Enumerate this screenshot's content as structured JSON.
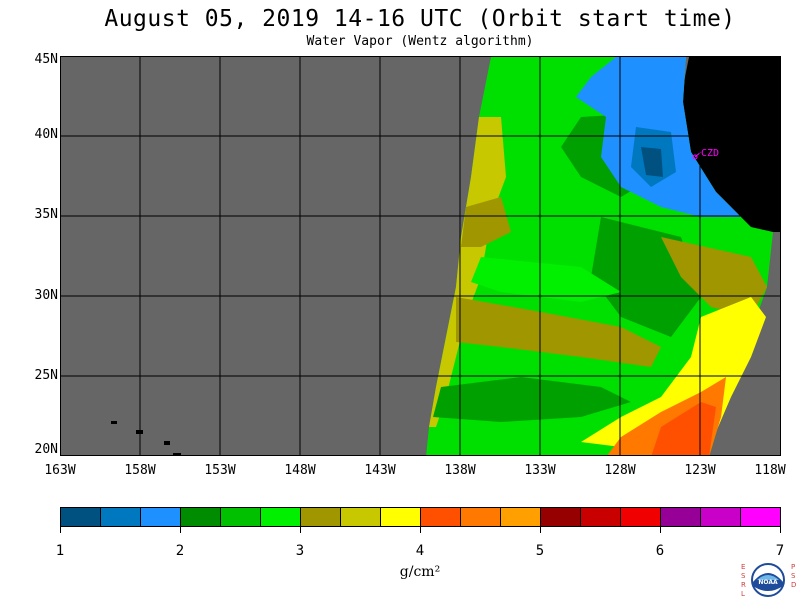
{
  "title": "August 05, 2019  14-16 UTC  (Orbit start time)",
  "subtitle": "Water Vapor (Wentz algorithm)",
  "map": {
    "lat_labels": [
      "45N",
      "40N",
      "35N",
      "30N",
      "25N",
      "20N"
    ],
    "lon_labels": [
      "163W",
      "158W",
      "153W",
      "148W",
      "143W",
      "138W",
      "133W",
      "128W",
      "123W",
      "118W"
    ],
    "station_label": "CZD",
    "background_color": "#666666",
    "land_color": "#000000"
  },
  "colorbar": {
    "labels": [
      "1",
      "2",
      "3",
      "4",
      "5",
      "6",
      "7"
    ],
    "units": "g/cm²",
    "colors": [
      "#005080",
      "#0078c0",
      "#1e90ff",
      "#008c00",
      "#00c000",
      "#00f000",
      "#a09600",
      "#c8c800",
      "#ffff00",
      "#ff5000",
      "#ff7800",
      "#ffa000",
      "#960000",
      "#c80000",
      "#f00000",
      "#960096",
      "#c800c8",
      "#ff00ff"
    ]
  },
  "logo": {
    "left_letters": "ESRL",
    "right_letters": "PSD",
    "center_text": "NOAA"
  }
}
